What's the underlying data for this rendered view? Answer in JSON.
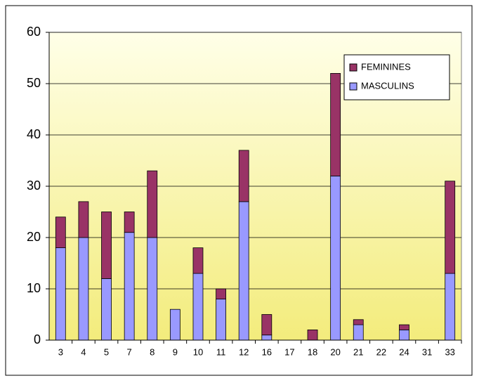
{
  "chart_data": {
    "type": "stacked_bar",
    "categories": [
      "3",
      "4",
      "5",
      "7",
      "8",
      "9",
      "10",
      "11",
      "12",
      "16",
      "17",
      "18",
      "20",
      "21",
      "22",
      "24",
      "31",
      "33"
    ],
    "series": [
      {
        "name": "MASCULINS",
        "color": "#9999ff",
        "values": [
          18,
          20,
          12,
          21,
          20,
          6,
          13,
          8,
          27,
          1,
          0,
          0,
          32,
          3,
          0,
          2,
          0,
          13
        ]
      },
      {
        "name": "FEMININES",
        "color": "#993366",
        "values": [
          6,
          7,
          13,
          4,
          13,
          0,
          5,
          2,
          10,
          4,
          0,
          2,
          20,
          1,
          0,
          1,
          0,
          18
        ]
      }
    ],
    "ylim": [
      0,
      60
    ],
    "yticks": [
      0,
      10,
      20,
      30,
      40,
      50,
      60
    ],
    "grid": true,
    "legend": "upper right"
  }
}
